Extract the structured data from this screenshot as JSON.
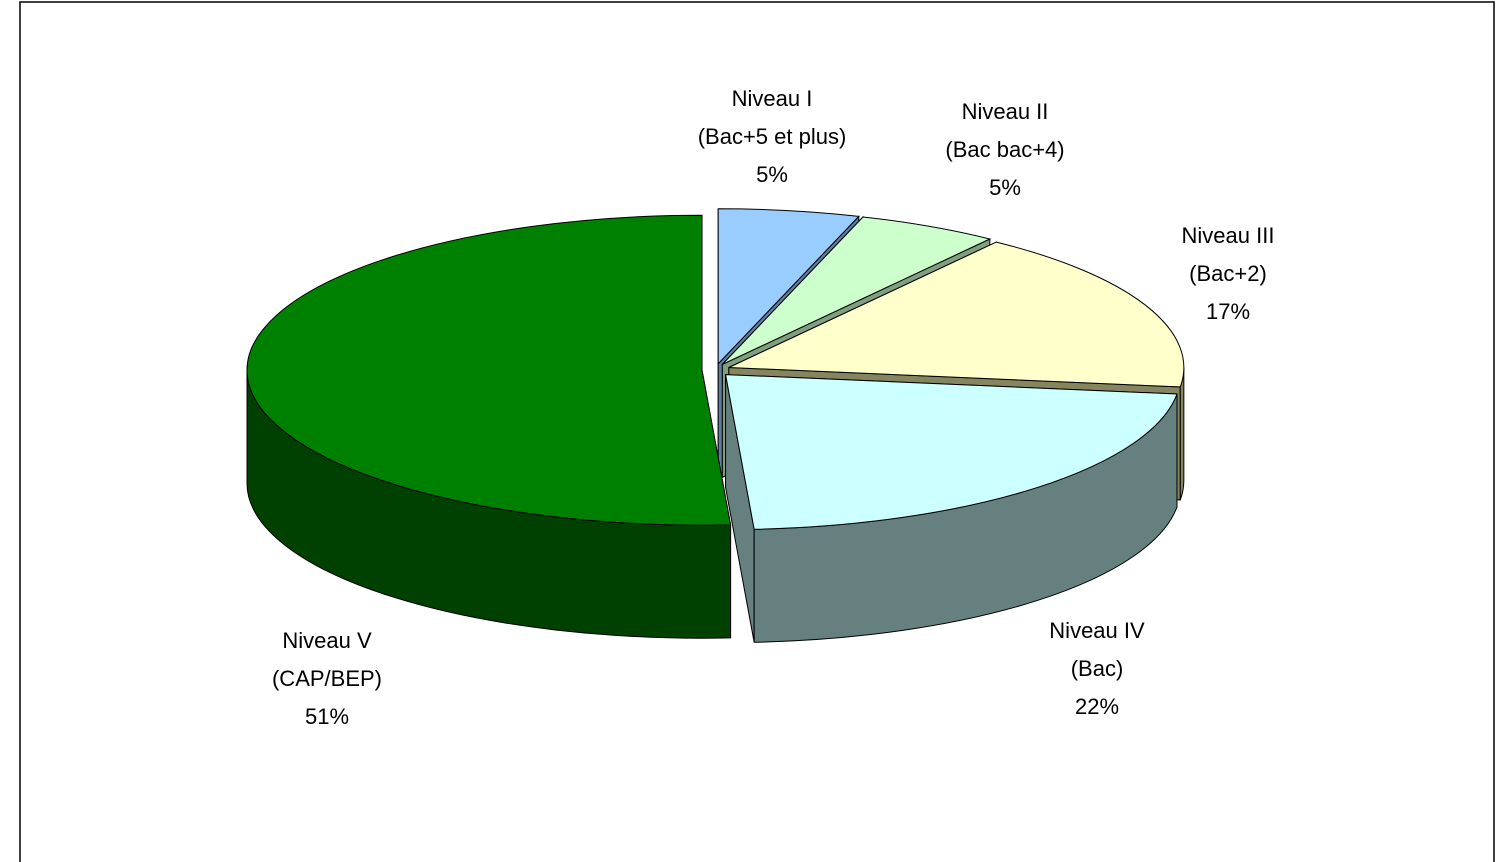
{
  "chart_data": {
    "type": "pie",
    "three_d": true,
    "categories": [
      [
        "Niveau I",
        "(Bac+5 et plus)"
      ],
      [
        "Niveau II",
        "(Bac bac+4)"
      ],
      [
        "Niveau III",
        "(Bac+2)"
      ],
      [
        "Niveau IV",
        "(Bac)"
      ],
      [
        "Niveau V",
        "(CAP/BEP)"
      ]
    ],
    "values": [
      5,
      5,
      17,
      22,
      51
    ],
    "value_labels": [
      "5%",
      "5%",
      "17%",
      "22%",
      "51%"
    ],
    "colors": [
      "#99ccff",
      "#ccffcc",
      "#ffffcc",
      "#ccffff",
      "#008000"
    ],
    "side_colors": [
      "#5f7f9f",
      "#7f9f7f",
      "#858560",
      "#668080",
      "#004000"
    ]
  }
}
